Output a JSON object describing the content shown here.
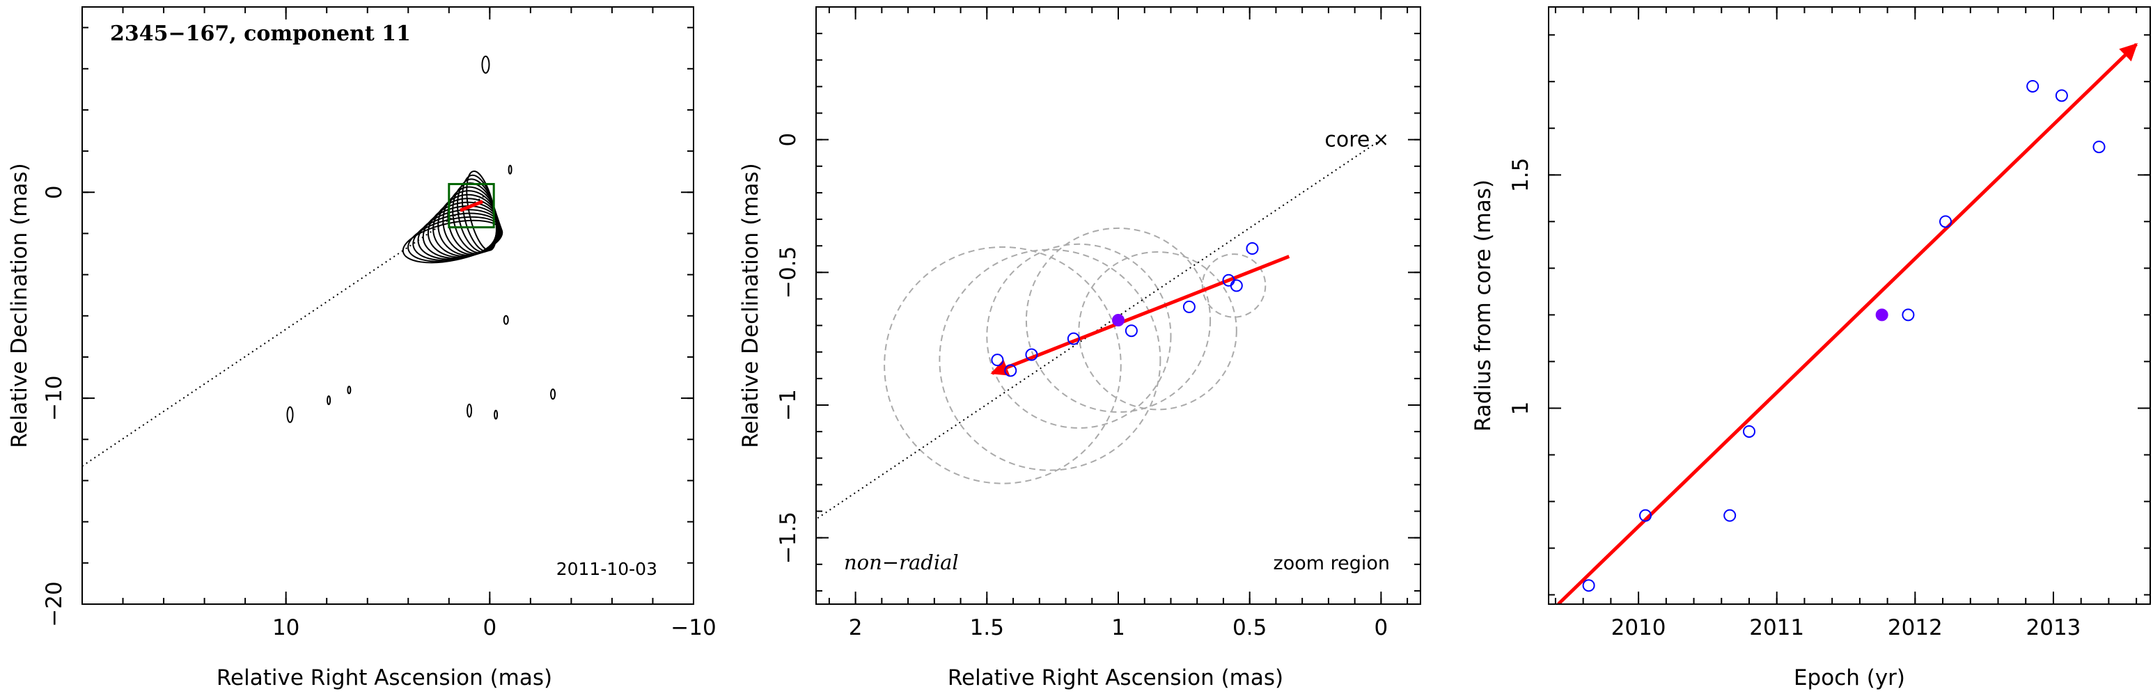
{
  "chart_data": [
    {
      "type": "scatter",
      "panel": "contour-map",
      "title": "2345−167, component 11",
      "date_label": "2011-10-03",
      "xlabel": "Relative Right Ascension (mas)",
      "ylabel": "Relative Declination (mas)",
      "xlim": [
        20,
        -10
      ],
      "ylim": [
        -20,
        9
      ],
      "xticks": [
        10,
        0,
        -10
      ],
      "xtick_labels": [
        "10",
        "0",
        "−10"
      ],
      "yticks": [
        -20,
        -10,
        0
      ],
      "ytick_labels": [
        "−20",
        "−10",
        "0"
      ],
      "core_direction_line": {
        "x": [
          20,
          0
        ],
        "y": [
          -13.3,
          0
        ]
      },
      "zoom_box": {
        "x": [
          2.0,
          -0.2
        ],
        "y": [
          -1.7,
          0.4
        ]
      },
      "component_track": {
        "x": [
          1.45,
          0.35
        ],
        "y": [
          -0.88,
          -0.45
        ]
      },
      "colors": {
        "contour": "#000000",
        "zoom_box": "#006400",
        "track": "#ff0000"
      }
    },
    {
      "type": "scatter",
      "panel": "zoom-region",
      "annotations": [
        "core",
        "non−radial",
        "zoom region"
      ],
      "xlabel": "Relative Right Ascension (mas)",
      "ylabel": "Relative Declination (mas)",
      "xlim": [
        2.15,
        -0.15
      ],
      "ylim": [
        -1.75,
        0.5
      ],
      "xticks": [
        2,
        1.5,
        1,
        0.5,
        0
      ],
      "xtick_labels": [
        "2",
        "1.5",
        "1",
        "0.5",
        "0"
      ],
      "yticks": [
        -1.5,
        -1,
        -0.5,
        0
      ],
      "ytick_labels": [
        "−1.5",
        "−1",
        "−0.5",
        "0"
      ],
      "core": {
        "x": 0.0,
        "y": 0.0
      },
      "points": [
        {
          "x": 1.46,
          "y": -0.83
        },
        {
          "x": 1.41,
          "y": -0.87
        },
        {
          "x": 1.33,
          "y": -0.81
        },
        {
          "x": 1.17,
          "y": -0.75
        },
        {
          "x": 1.0,
          "y": -0.68,
          "highlight": true
        },
        {
          "x": 0.95,
          "y": -0.72
        },
        {
          "x": 0.73,
          "y": -0.63
        },
        {
          "x": 0.58,
          "y": -0.53
        },
        {
          "x": 0.55,
          "y": -0.55
        },
        {
          "x": 0.49,
          "y": -0.41
        }
      ],
      "circles": [
        {
          "x": 1.44,
          "y": -0.85,
          "r": 0.45
        },
        {
          "x": 1.26,
          "y": -0.83,
          "r": 0.42
        },
        {
          "x": 1.15,
          "y": -0.74,
          "r": 0.35
        },
        {
          "x": 1.0,
          "y": -0.68,
          "r": 0.35
        },
        {
          "x": 0.85,
          "y": -0.72,
          "r": 0.3
        },
        {
          "x": 0.56,
          "y": -0.55,
          "r": 0.12
        }
      ],
      "fit_line": {
        "x": [
          1.48,
          0.35
        ],
        "y": [
          -0.88,
          -0.44
        ]
      },
      "colors": {
        "points": "#0000ff",
        "highlight": "#7b00ff",
        "fit": "#ff0000",
        "circles": "#aaaaaa"
      }
    },
    {
      "type": "scatter",
      "panel": "radius-vs-epoch",
      "xlabel": "Epoch (yr)",
      "ylabel": "Radius from core (mas)",
      "xlim": [
        2009.35,
        2013.7
      ],
      "ylim": [
        0.58,
        1.86
      ],
      "xticks": [
        2010,
        2011,
        2012,
        2013
      ],
      "xtick_labels": [
        "2010",
        "2011",
        "2012",
        "2013"
      ],
      "yticks": [
        1.0,
        1.5
      ],
      "ytick_labels": [
        "1",
        "1.5"
      ],
      "points": [
        {
          "x": 2009.64,
          "y": 0.62
        },
        {
          "x": 2010.05,
          "y": 0.77
        },
        {
          "x": 2010.66,
          "y": 0.77
        },
        {
          "x": 2010.8,
          "y": 0.95
        },
        {
          "x": 2011.76,
          "y": 1.2,
          "highlight": true
        },
        {
          "x": 2011.95,
          "y": 1.2
        },
        {
          "x": 2012.22,
          "y": 1.4
        },
        {
          "x": 2012.85,
          "y": 1.69
        },
        {
          "x": 2013.06,
          "y": 1.67
        },
        {
          "x": 2013.33,
          "y": 1.56
        }
      ],
      "fit_line": {
        "x": [
          2009.42,
          2013.6
        ],
        "y": [
          0.58,
          1.78
        ]
      },
      "colors": {
        "points": "#0000ff",
        "highlight": "#7b00ff",
        "fit": "#ff0000"
      }
    }
  ]
}
